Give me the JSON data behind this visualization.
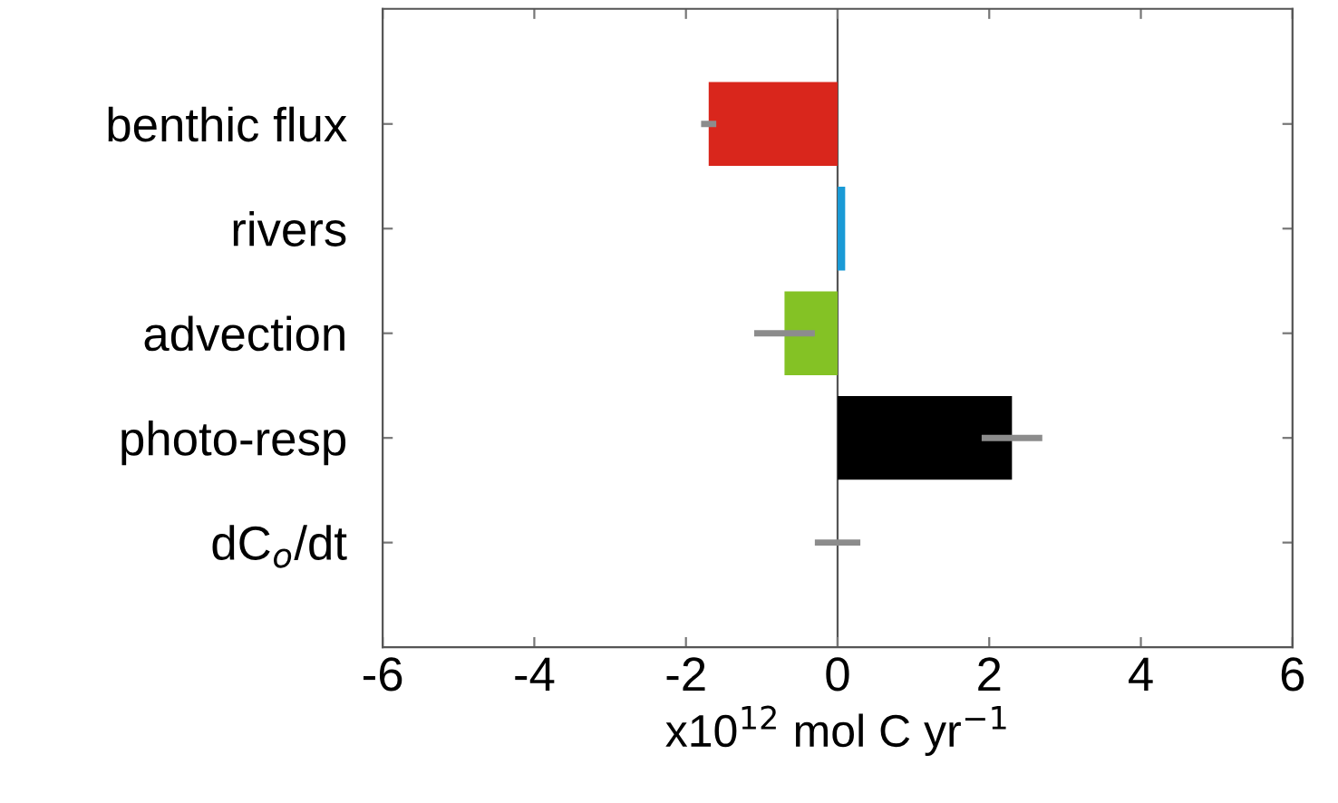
{
  "chart_data": {
    "type": "bar",
    "orientation": "horizontal",
    "xlabel": "x10$^{12}$ mol C yr$^{−1}$",
    "categories": [
      "benthic flux",
      "rivers",
      "advection",
      "photo-resp",
      "dC$_{o}$/dt"
    ],
    "values": [
      -1.7,
      0.1,
      -0.7,
      2.3,
      0
    ],
    "colors": [
      "#d9261c",
      "#1a9ad6",
      "#84c225",
      "#000000",
      "#000000"
    ],
    "errors": [
      0.1,
      null,
      0.4,
      0.4,
      0.3
    ],
    "xlim": [
      -6,
      6
    ],
    "xticks": [
      -6,
      -4,
      -2,
      0,
      2,
      4,
      6
    ],
    "ref_lines": [
      {
        "axis": "x",
        "value": 0,
        "color": "#555555"
      }
    ],
    "grid": false,
    "legend": false
  }
}
